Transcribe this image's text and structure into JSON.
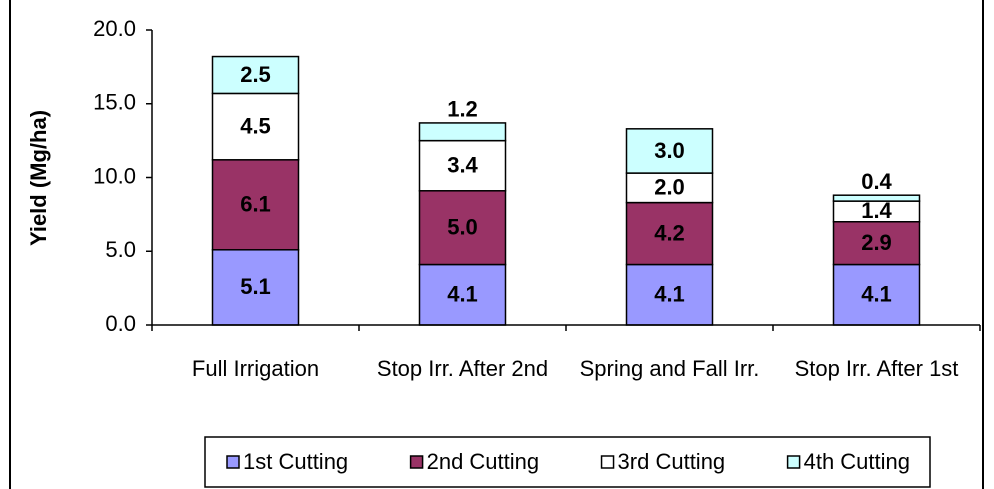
{
  "chart_data": {
    "type": "stacked-bar",
    "y_label": "Yield (Mg/ha)",
    "categories": [
      "Full Irrigation",
      "Stop Irr. After 2nd",
      "Spring and Fall Irr.",
      "Stop Irr. After 1st"
    ],
    "series": [
      {
        "name": "1st Cutting",
        "color": "#9999ff",
        "values": [
          5.1,
          4.1,
          4.1,
          4.1
        ],
        "value_labels": [
          "5.1",
          "4.1",
          "4.1",
          "4.1"
        ]
      },
      {
        "name": "2nd Cutting",
        "color": "#993366",
        "values": [
          6.1,
          5.0,
          4.2,
          2.9
        ],
        "value_labels": [
          "6.1",
          "5.0",
          "4.2",
          "2.9"
        ]
      },
      {
        "name": "3rd Cutting",
        "color": "#ffffff",
        "values": [
          4.5,
          3.4,
          2.0,
          1.4
        ],
        "value_labels": [
          "4.5",
          "3.4",
          "2.0",
          "1.4"
        ]
      },
      {
        "name": "4th Cutting",
        "color": "#ccffff",
        "values": [
          2.5,
          1.2,
          3.0,
          0.4
        ],
        "value_labels": [
          "2.5",
          "1.2",
          "3.0",
          "0.4"
        ]
      }
    ],
    "ylim": [
      0,
      20
    ],
    "yticks": [
      {
        "value": 0,
        "label": "0.0"
      },
      {
        "value": 5,
        "label": "5.0"
      },
      {
        "value": 10,
        "label": "10.0"
      },
      {
        "value": 15,
        "label": "15.0"
      },
      {
        "value": 20,
        "label": "20.0"
      }
    ],
    "legend": "bottom",
    "grid": false
  }
}
